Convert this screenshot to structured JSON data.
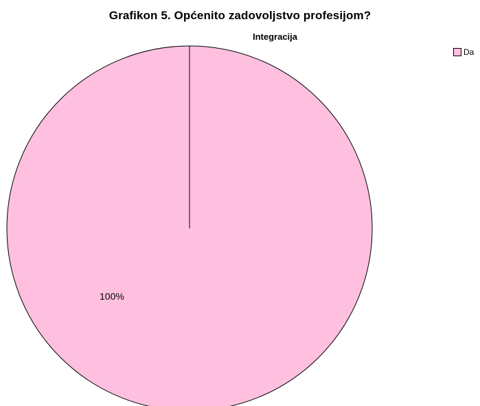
{
  "chart_data": {
    "type": "pie",
    "title": "Grafikon 5. Općenito zadovoljstvo profesijom?",
    "subtitle": "Integracija",
    "categories": [
      "Da"
    ],
    "values": [
      100
    ],
    "data_labels": [
      "100%"
    ],
    "colors": [
      "#ffc0e0"
    ],
    "legend": "top-right"
  }
}
